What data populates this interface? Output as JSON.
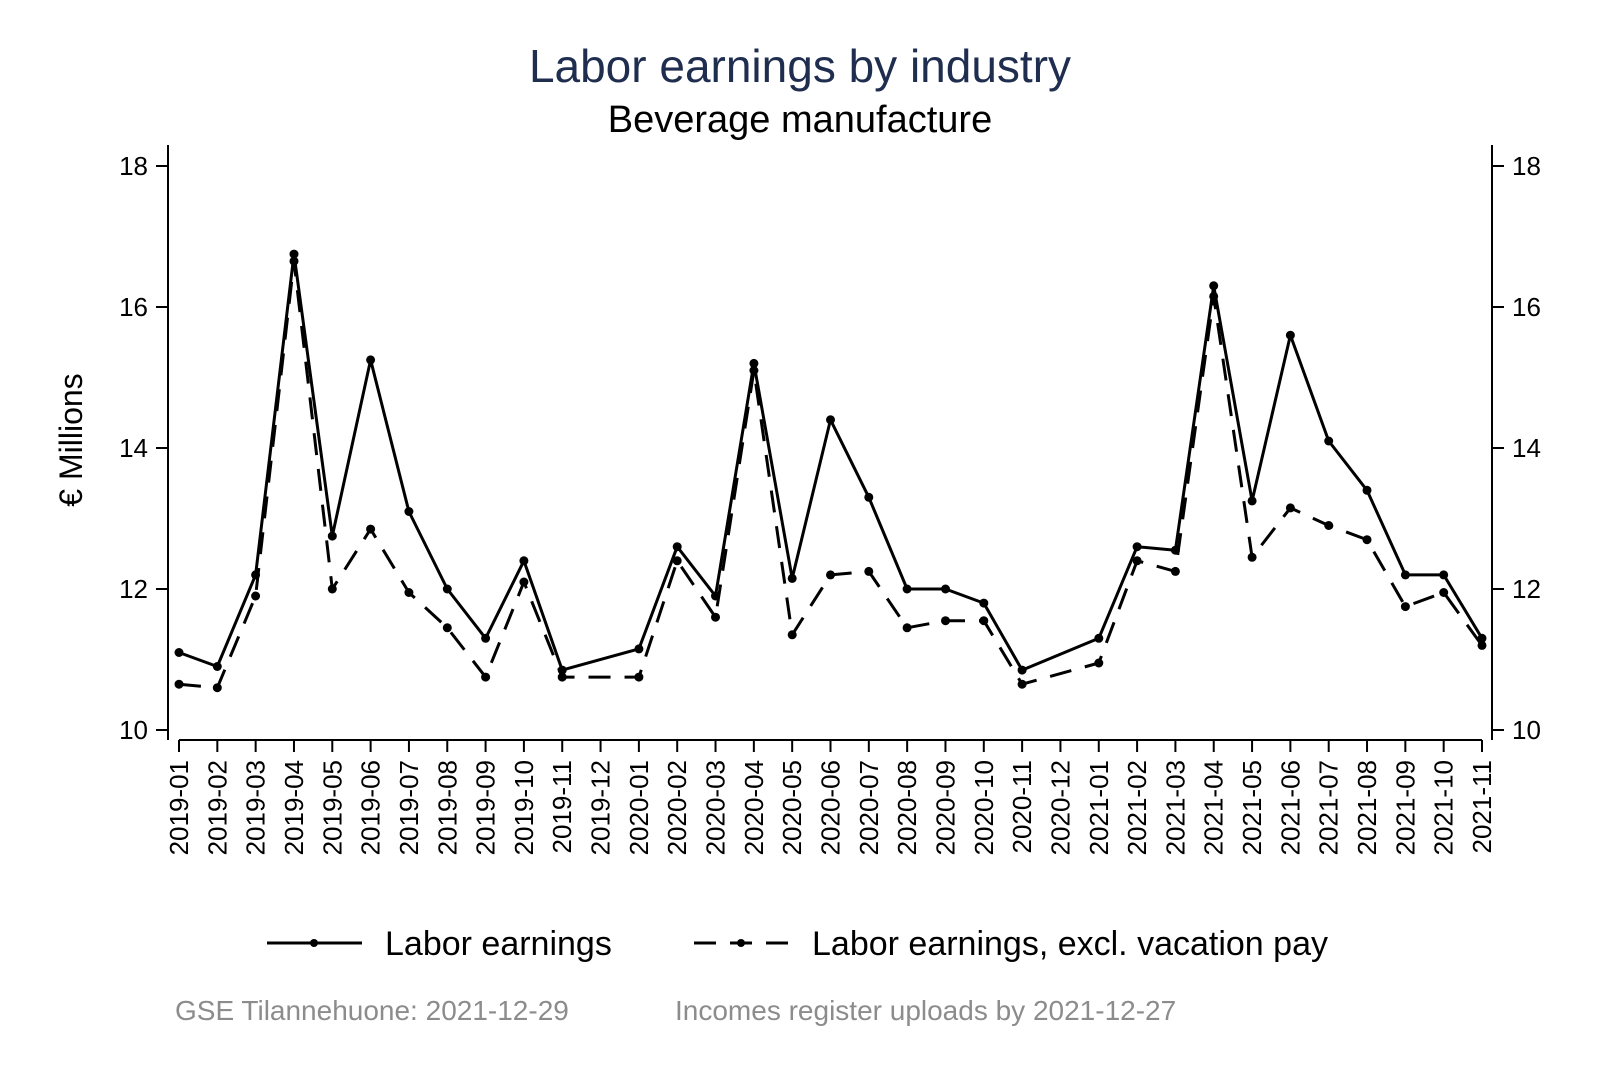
{
  "chart_data": {
    "type": "line",
    "title": "Labor earnings by industry",
    "subtitle": "Beverage manufacture",
    "ylabel": "€ Millions",
    "ylim": [
      10,
      18
    ],
    "yticks": [
      "10",
      "12",
      "14",
      "16",
      "18"
    ],
    "y_axis_right_mirror": true,
    "grid": false,
    "legend_position": "bottom",
    "x": [
      "2019-01",
      "2019-02",
      "2019-03",
      "2019-04",
      "2019-05",
      "2019-06",
      "2019-07",
      "2019-08",
      "2019-09",
      "2019-10",
      "2019-11",
      "2019-12",
      "2020-01",
      "2020-02",
      "2020-03",
      "2020-04",
      "2020-05",
      "2020-06",
      "2020-07",
      "2020-08",
      "2020-09",
      "2020-10",
      "2020-11",
      "2020-12",
      "2021-01",
      "2021-02",
      "2021-03",
      "2021-04",
      "2021-05",
      "2021-06",
      "2021-07",
      "2021-08",
      "2021-09",
      "2021-10",
      "2021-11"
    ],
    "series": [
      {
        "name": "Labor earnings",
        "style": "solid",
        "color": "#000000",
        "values": [
          11.1,
          10.9,
          12.2,
          16.75,
          12.75,
          15.25,
          13.1,
          12.0,
          11.3,
          12.4,
          10.85,
          null,
          11.15,
          12.6,
          11.9,
          15.2,
          12.15,
          14.4,
          13.3,
          12.0,
          12.0,
          11.8,
          10.85,
          null,
          11.3,
          12.6,
          12.55,
          16.3,
          13.25,
          15.6,
          14.1,
          13.4,
          12.2,
          12.2,
          11.3
        ]
      },
      {
        "name": "Labor earnings, excl. vacation pay",
        "style": "dashed",
        "color": "#000000",
        "values": [
          10.65,
          10.6,
          11.9,
          16.65,
          12.0,
          12.85,
          11.95,
          11.45,
          10.75,
          12.1,
          10.75,
          null,
          10.75,
          12.4,
          11.6,
          15.1,
          11.35,
          12.2,
          12.25,
          11.45,
          11.55,
          11.55,
          10.65,
          null,
          10.95,
          12.4,
          12.25,
          16.15,
          12.45,
          13.15,
          12.9,
          12.7,
          11.75,
          11.95,
          11.2
        ]
      }
    ]
  },
  "footer": {
    "source": "GSE Tilannehuone: 2021-12-29",
    "uploads": "Incomes register uploads by 2021-12-27"
  }
}
